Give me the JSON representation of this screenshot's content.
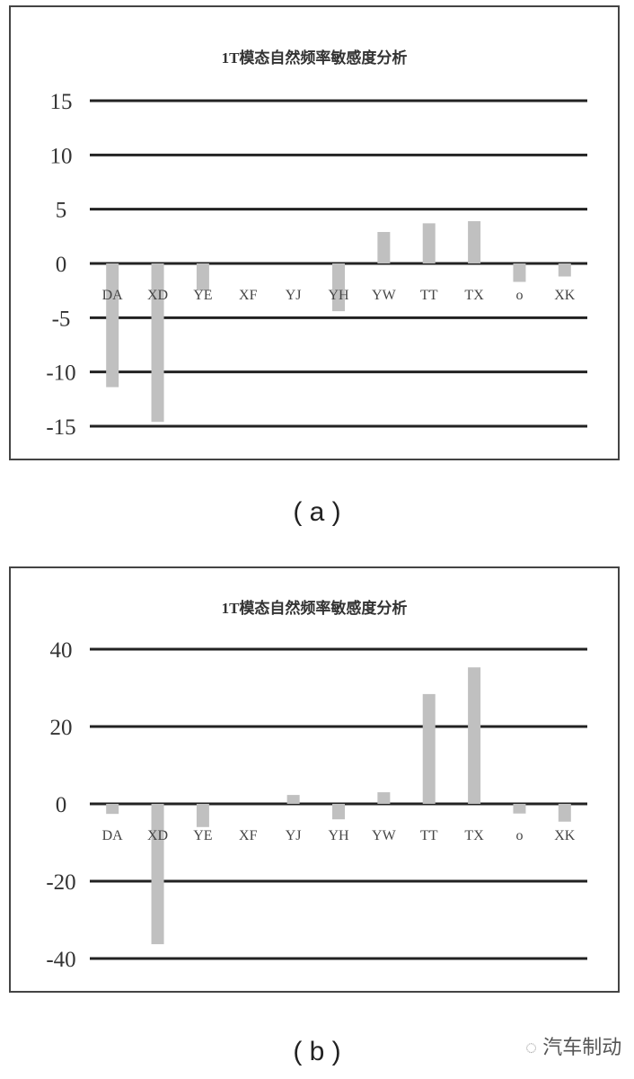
{
  "chart_data": [
    {
      "type": "bar",
      "title": "1T模态自然频率敏感度分析",
      "categories": [
        "DA",
        "XD",
        "YE",
        "XF",
        "YJ",
        "YH",
        "YW",
        "TT",
        "TX",
        "o",
        "XK"
      ],
      "values": [
        -11.4,
        -14.6,
        -2.5,
        0,
        0,
        -4.4,
        2.9,
        3.7,
        3.9,
        -1.7,
        -1.2
      ],
      "ylim": [
        -15,
        15
      ],
      "yticks": [
        15,
        10,
        5,
        0,
        -5,
        -10,
        -15
      ],
      "grid": true,
      "bar_color": "#c0c0c0",
      "caption": "( a )"
    },
    {
      "type": "bar",
      "title": "1T模态自然频率敏感度分析",
      "categories": [
        "DA",
        "XD",
        "YE",
        "XF",
        "YJ",
        "YH",
        "YW",
        "TT",
        "TX",
        "o",
        "XK"
      ],
      "values": [
        -2.6,
        -36.3,
        -6,
        0,
        2.3,
        -4,
        3,
        28.4,
        35.3,
        -2.5,
        -4.6
      ],
      "ylim": [
        -40,
        40
      ],
      "yticks": [
        40,
        20,
        0,
        -20,
        -40
      ],
      "grid": true,
      "bar_color": "#c0c0c0",
      "caption": "( b )"
    }
  ],
  "watermark": "汽车制动"
}
